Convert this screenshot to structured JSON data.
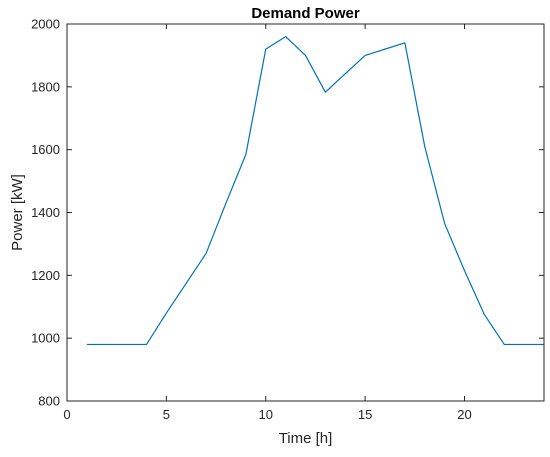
{
  "colors": {
    "series": "#0072bd",
    "axis": "#262626",
    "background": "#ffffff"
  },
  "chart_data": {
    "type": "line",
    "title": "Demand Power",
    "xlabel": "Time [h]",
    "ylabel": "Power [kW]",
    "xlim": [
      0,
      24
    ],
    "ylim": [
      800,
      2000
    ],
    "xticks": [
      0,
      5,
      10,
      15,
      20
    ],
    "yticks": [
      800,
      1000,
      1200,
      1400,
      1600,
      1800,
      2000
    ],
    "grid": false,
    "series": [
      {
        "x": [
          1,
          2,
          3,
          4,
          5,
          6,
          7,
          8,
          9,
          10,
          11,
          12,
          13,
          14,
          15,
          16,
          17,
          18,
          19,
          20,
          21,
          22,
          23,
          24
        ],
        "y": [
          980,
          980,
          980,
          980,
          1080,
          1175,
          1270,
          1430,
          1585,
          1920,
          1960,
          1900,
          1783,
          1842,
          1900,
          1920,
          1940,
          1610,
          1365,
          1215,
          1075,
          980,
          980,
          980
        ]
      }
    ]
  }
}
